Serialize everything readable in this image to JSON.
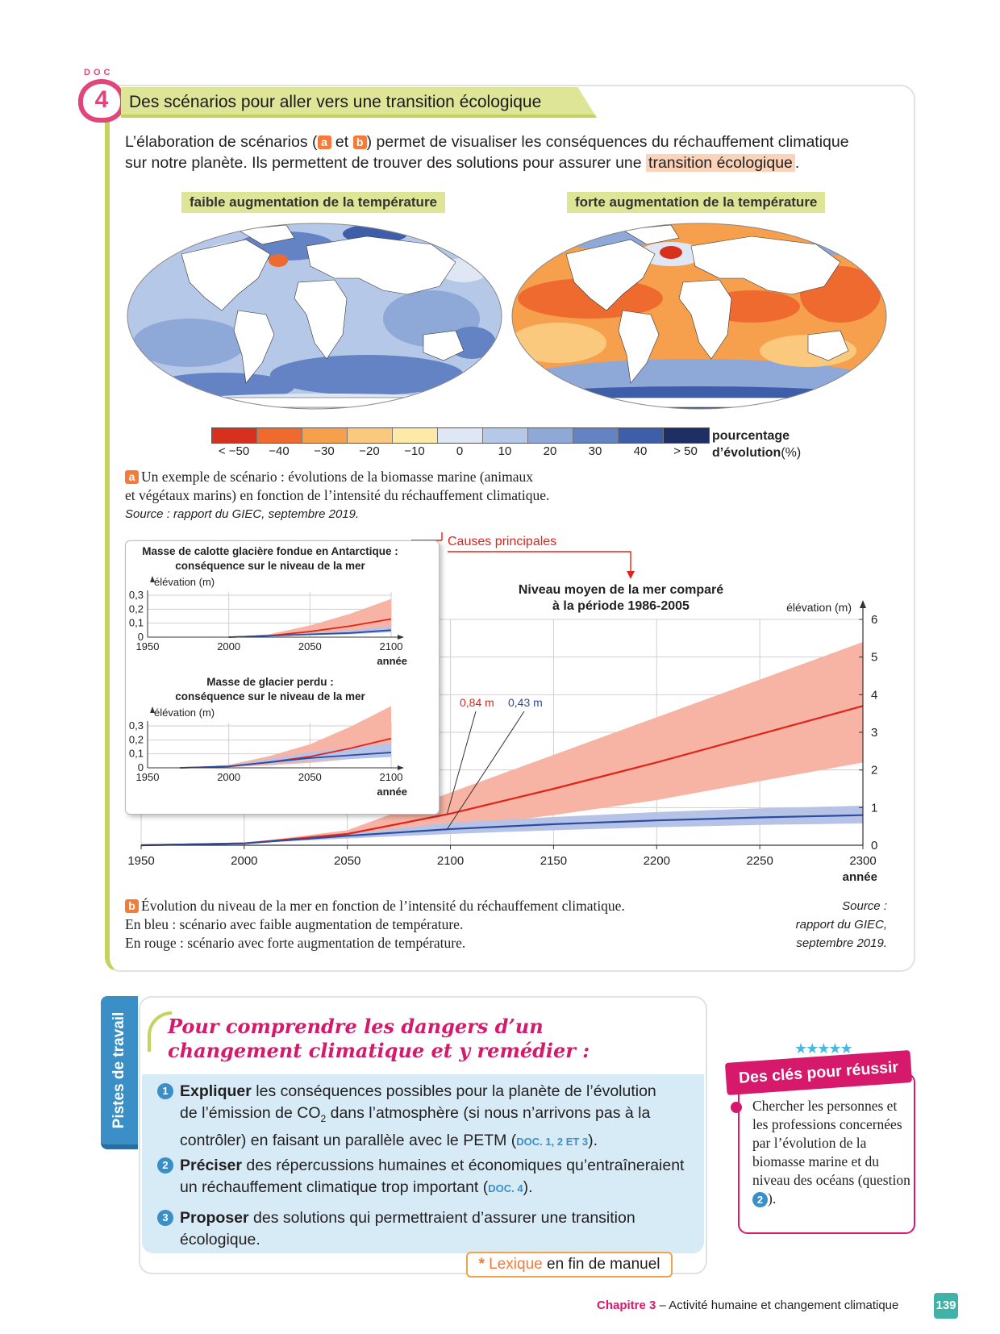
{
  "doc": {
    "label": "DOC",
    "number": "4",
    "title": "Des scénarios pour aller vers une transition écologique"
  },
  "intro": {
    "part1": "L’élaboration de scénarios (",
    "tag_a": "a",
    "part2": " et ",
    "tag_b": "b",
    "part3": ") permet de visualiser les conséquences du réchauffement climatique sur notre planète. Ils permettent de trouver des solutions pour assurer une ",
    "highlight": "transition écologique",
    "part4": "."
  },
  "maps": {
    "left_label": "faible augmentation de la température",
    "right_label": "forte augmentation de la température"
  },
  "legend": {
    "colors": [
      "#d7301f",
      "#ef6a2f",
      "#f6a04e",
      "#fbc97d",
      "#fdeaa9",
      "#dfe7f4",
      "#b6c8e8",
      "#8ea8d8",
      "#6483c4",
      "#3f5ea9",
      "#1e2f66"
    ],
    "ticks": [
      "< −50",
      "−40",
      "−30",
      "−20",
      "−10",
      "0",
      "10",
      "20",
      "30",
      "40",
      "> 50"
    ],
    "unit_bold": "pourcentage",
    "unit_line2_bold": "d’évolution",
    "unit_line2_normal": "(%)"
  },
  "caption_a": {
    "tag": "a",
    "line1": "Un exemple de scénario : évolutions de la biomasse marine (animaux",
    "line2": "et végétaux marins) en fonction de l’intensité du réchauffement climatique.",
    "source": "Source : rapport du GIEC, septembre 2019."
  },
  "chart_data": [
    {
      "type": "line",
      "title": "Niveau moyen de la mer comparé à la période 1986-2005",
      "xlabel": "année",
      "ylabel": "élévation (m)",
      "x_ticks": [
        "1950",
        "2000",
        "2050",
        "2100",
        "2150",
        "2200",
        "2250",
        "2300"
      ],
      "y_ticks": [
        "0",
        "1",
        "2",
        "3",
        "4",
        "5",
        "6"
      ],
      "xlim": [
        1950,
        2300
      ],
      "ylim": [
        0,
        6
      ],
      "annotation": "Causes principales",
      "label_red": "0,84 m",
      "label_blue": "0,43 m",
      "series": [
        {
          "color": "#e2231a",
          "x": [
            1950,
            2000,
            2050,
            2100,
            2150,
            2200,
            2250,
            2300
          ],
          "values": [
            0.0,
            0.05,
            0.3,
            0.84,
            1.5,
            2.2,
            2.95,
            3.7
          ]
        },
        {
          "color": "#2a4da0",
          "x": [
            1950,
            2000,
            2050,
            2100,
            2150,
            2200,
            2250,
            2300
          ],
          "values": [
            0.0,
            0.05,
            0.25,
            0.43,
            0.56,
            0.66,
            0.74,
            0.8
          ]
        }
      ]
    },
    {
      "type": "line",
      "title": "Masse de calotte glacière fondue en Antarctique : conséquence sur le niveau de la mer",
      "xlabel": "année",
      "ylabel": "élévation (m)",
      "x_ticks": [
        "1950",
        "2000",
        "2050",
        "2100"
      ],
      "y_ticks": [
        "0",
        "0,1",
        "0,2",
        "0,3"
      ],
      "xlim": [
        1950,
        2100
      ],
      "ylim": [
        0,
        0.3
      ],
      "series": [
        {
          "color": "#e2231a",
          "x": [
            2000,
            2025,
            2050,
            2075,
            2100
          ],
          "values": [
            0.0,
            0.01,
            0.04,
            0.08,
            0.13
          ]
        },
        {
          "color": "#2a4da0",
          "x": [
            2000,
            2025,
            2050,
            2075,
            2100
          ],
          "values": [
            0.0,
            0.01,
            0.02,
            0.03,
            0.05
          ]
        }
      ]
    },
    {
      "type": "line",
      "title": "Masse de glacier perdu : conséquence sur le niveau de la mer",
      "xlabel": "année",
      "ylabel": "élévation (m)",
      "x_ticks": [
        "1950",
        "2000",
        "2050",
        "2100"
      ],
      "y_ticks": [
        "0",
        "0,1",
        "0,2",
        "0,3"
      ],
      "xlim": [
        1950,
        2100
      ],
      "ylim": [
        0,
        0.3
      ],
      "series": [
        {
          "color": "#e2231a",
          "x": [
            1970,
            2000,
            2025,
            2050,
            2075,
            2100
          ],
          "values": [
            0.0,
            0.01,
            0.04,
            0.08,
            0.14,
            0.21
          ]
        },
        {
          "color": "#2a4da0",
          "x": [
            1970,
            2000,
            2025,
            2050,
            2075,
            2100
          ],
          "values": [
            0.0,
            0.01,
            0.04,
            0.07,
            0.09,
            0.11
          ]
        }
      ]
    }
  ],
  "caption_b": {
    "tag": "b",
    "line1": "Évolution du niveau de la mer en fonction de l’intensité du réchauffement climatique.",
    "line2": "En bleu : scénario avec faible augmentation de température.",
    "line3": "En rouge : scénario avec forte augmentation de température.",
    "source1": "Source :",
    "source2": "rapport du GIEC,",
    "source3": "septembre 2019."
  },
  "pistes": {
    "tab": "Pistes de travail",
    "title": "Pour comprendre les dangers d’un changement climatique et y remédier :",
    "q1": {
      "num": "1",
      "verb": "Expliquer",
      "text1": " les conséquences possibles pour la planète de l’évolution",
      "text2": "de l’émission de CO",
      "sub": "2",
      "text3": " dans l’atmosphère (si nous n’arrivons pas à la",
      "text4": "contrôler) en faisant un parallèle avec le PETM (",
      "doc": "DOC. 1, 2 ET 3",
      "end": ")."
    },
    "q2": {
      "num": "2",
      "verb": "Préciser",
      "text1": " des répercussions humaines et économiques qu’entraîneraient",
      "text2": "un réchauffement climatique trop important (",
      "doc": "DOC. 4",
      "end": ")."
    },
    "q3": {
      "num": "3",
      "verb": "Proposer",
      "text1": " des solutions qui permettraient d’assurer une transition",
      "text2": "écologique."
    },
    "lexique_ast": "*",
    "lexique_word": "Lexique",
    "lexique_rest": " en fin de manuel"
  },
  "cles": {
    "banner": "Des clés pour réussir",
    "text": "Chercher les personnes et les professions concernées par l’évolution de la biomasse marine et du niveau des océans (question ",
    "num": "2",
    "end": ")."
  },
  "footer": {
    "chapter": "Chapitre 3",
    "rest": " – Activité humaine et changement climatique",
    "page": "139"
  }
}
